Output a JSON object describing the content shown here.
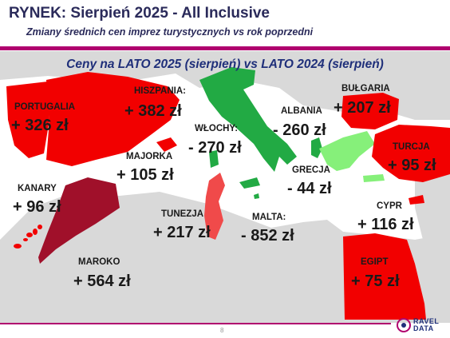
{
  "header": {
    "title": "RYNEK: Sierpień 2025 - All Inclusive",
    "subtitle": "Zmiany średnich cen imprez turystycznych vs rok poprzedni"
  },
  "chart_data": {
    "type": "map",
    "title": "Ceny na LATO 2025 (sierpień) vs  LATO 2024 (sierpień)",
    "unit": "zł",
    "regions": [
      {
        "name": "PORTUGALIA",
        "label": "+ 326 zł",
        "change": 326,
        "color": "#f20000"
      },
      {
        "name": "HISZPANIA:",
        "label": "+ 382 zł",
        "change": 382,
        "color": "#f20000"
      },
      {
        "name": "MAJORKA",
        "label": "+ 105 zł",
        "change": 105,
        "color": "#f20000"
      },
      {
        "name": "KANARY",
        "label": "+ 96 zł",
        "change": 96,
        "color": "#f20000"
      },
      {
        "name": "WŁOCHY:",
        "label": "- 270 zł",
        "change": -270,
        "color": "#22aa44"
      },
      {
        "name": "ALBANIA",
        "label": "- 260 zł",
        "change": -260,
        "color": "#22aa44"
      },
      {
        "name": "BUŁGARIA",
        "label": "+ 207 zł",
        "change": 207,
        "color": "#f20000"
      },
      {
        "name": "TURCJA",
        "label": "+ 95 zł",
        "change": 95,
        "color": "#f20000"
      },
      {
        "name": "GRECJA",
        "label": "- 44 zł",
        "change": -44,
        "color": "#86f07a"
      },
      {
        "name": "TUNEZJA",
        "label": "+ 217 zł",
        "change": 217,
        "color": "#f04a4a"
      },
      {
        "name": "MALTA:",
        "label": "- 852 zł",
        "change": -852,
        "color": "#22aa44"
      },
      {
        "name": "CYPR",
        "label": "+ 116 zł",
        "change": 116,
        "color": "#f20000"
      },
      {
        "name": "MAROKO",
        "label": "+ 564 zł",
        "change": 564,
        "color": "#a0102a"
      },
      {
        "name": "EGIPT",
        "label": "+ 75 zł",
        "change": 75,
        "color": "#f20000"
      }
    ]
  },
  "footer": {
    "page_number": "8",
    "logo_line1": "RAVEL",
    "logo_line2": "DATA"
  }
}
